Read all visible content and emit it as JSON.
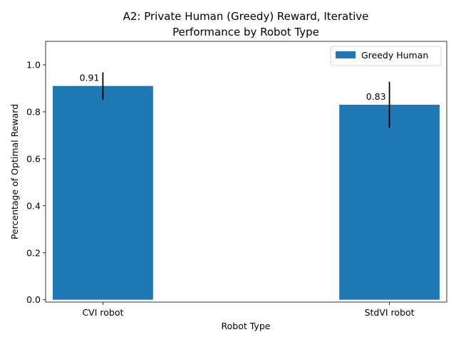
{
  "chart_data": {
    "type": "bar",
    "title": "A2: Private Human (Greedy) Reward, Iterative",
    "subtitle": "Performance by Robot Type",
    "xlabel": "Robot Type",
    "ylabel": "Percentage of Optimal Reward",
    "categories": [
      "CVI robot",
      "StdVI robot"
    ],
    "series": [
      {
        "name": "Greedy Human",
        "values": [
          0.91,
          0.83
        ],
        "error": [
          0.058,
          0.098
        ],
        "data_labels": [
          "0.91",
          "0.83"
        ]
      }
    ],
    "ylim": [
      -0.01,
      1.1
    ],
    "yticks": [
      0.0,
      0.2,
      0.4,
      0.6,
      0.8,
      1.0
    ],
    "ytick_labels": [
      "0.0",
      "0.2",
      "0.4",
      "0.6",
      "0.8",
      "1.0"
    ],
    "grid": false,
    "legend_position": "top-right",
    "colors": {
      "bar": "#1f77b4",
      "error": "#000000"
    }
  }
}
